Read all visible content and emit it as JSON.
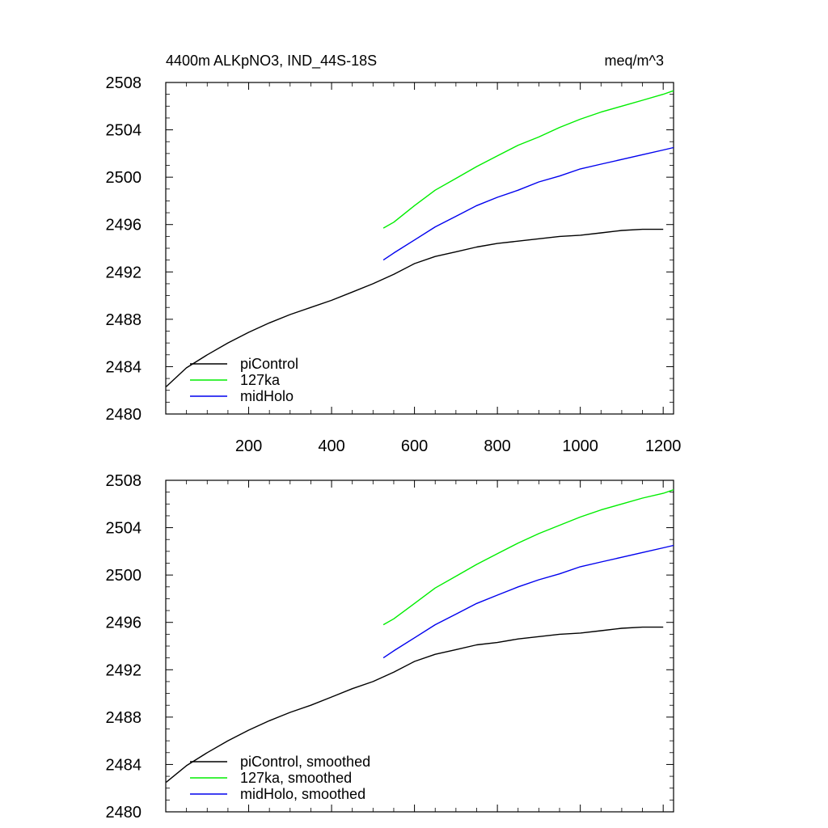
{
  "title_left": "4400m ALKpNO3, IND_44S-18S",
  "title_right": "meq/m^3",
  "chart_data": [
    {
      "type": "line",
      "panel": "top",
      "xlim": [
        0,
        1225
      ],
      "ylim": [
        2480,
        2508
      ],
      "yticks": [
        2480,
        2484,
        2488,
        2492,
        2496,
        2500,
        2504,
        2508
      ],
      "xticks": [
        200,
        400,
        600,
        800,
        1000,
        1200
      ],
      "show_xtick_labels": true,
      "legend_position": "bottom-left",
      "series": [
        {
          "name": "piControl",
          "color": "#000000",
          "x": [
            1,
            50,
            100,
            150,
            200,
            250,
            300,
            350,
            400,
            450,
            500,
            550,
            600,
            650,
            700,
            750,
            800,
            850,
            900,
            950,
            1000,
            1050,
            1100,
            1150,
            1200
          ],
          "y": [
            2482.3,
            2483.9,
            2485.0,
            2486.0,
            2486.9,
            2487.7,
            2488.4,
            2489.0,
            2489.6,
            2490.3,
            2491.0,
            2491.8,
            2492.7,
            2493.3,
            2493.7,
            2494.1,
            2494.4,
            2494.6,
            2494.8,
            2495.0,
            2495.1,
            2495.3,
            2495.5,
            2495.6,
            2495.6
          ]
        },
        {
          "name": "127ka",
          "color": "#00ee00",
          "x": [
            525,
            550,
            600,
            650,
            700,
            750,
            800,
            850,
            900,
            950,
            1000,
            1050,
            1100,
            1150,
            1200,
            1225
          ],
          "y": [
            2495.7,
            2496.2,
            2497.6,
            2498.9,
            2499.9,
            2500.9,
            2501.8,
            2502.7,
            2503.4,
            2504.2,
            2504.9,
            2505.5,
            2506.0,
            2506.5,
            2507.0,
            2507.3
          ]
        },
        {
          "name": "midHolo",
          "color": "#0000ee",
          "x": [
            525,
            550,
            600,
            650,
            700,
            750,
            800,
            850,
            900,
            950,
            1000,
            1050,
            1100,
            1150,
            1200,
            1225
          ],
          "y": [
            2493.0,
            2493.6,
            2494.7,
            2495.8,
            2496.7,
            2497.6,
            2498.3,
            2498.9,
            2499.6,
            2500.1,
            2500.7,
            2501.1,
            2501.5,
            2501.9,
            2502.3,
            2502.5
          ]
        }
      ]
    },
    {
      "type": "line",
      "panel": "bottom",
      "xlim": [
        0,
        1225
      ],
      "ylim": [
        2480,
        2508
      ],
      "yticks": [
        2480,
        2484,
        2488,
        2492,
        2496,
        2500,
        2504,
        2508
      ],
      "xticks": [
        200,
        400,
        600,
        800,
        1000,
        1200
      ],
      "show_xtick_labels": false,
      "legend_position": "bottom-left",
      "series": [
        {
          "name": "piControl, smoothed",
          "color": "#000000",
          "x": [
            1,
            50,
            100,
            150,
            200,
            250,
            300,
            350,
            400,
            450,
            500,
            550,
            600,
            650,
            700,
            750,
            800,
            850,
            900,
            950,
            1000,
            1050,
            1100,
            1150,
            1200
          ],
          "y": [
            2482.5,
            2483.9,
            2485.0,
            2486.0,
            2486.9,
            2487.7,
            2488.4,
            2489.0,
            2489.7,
            2490.4,
            2491.0,
            2491.8,
            2492.7,
            2493.3,
            2493.7,
            2494.1,
            2494.3,
            2494.6,
            2494.8,
            2495.0,
            2495.1,
            2495.3,
            2495.5,
            2495.6,
            2495.6
          ]
        },
        {
          "name": "127ka, smoothed",
          "color": "#00ee00",
          "x": [
            525,
            550,
            600,
            650,
            700,
            750,
            800,
            850,
            900,
            950,
            1000,
            1050,
            1100,
            1150,
            1200,
            1225
          ],
          "y": [
            2495.8,
            2496.3,
            2497.6,
            2498.9,
            2499.9,
            2500.9,
            2501.8,
            2502.7,
            2503.5,
            2504.2,
            2504.9,
            2505.5,
            2506.0,
            2506.5,
            2506.9,
            2507.2
          ]
        },
        {
          "name": "midHolo, smoothed",
          "color": "#0000ee",
          "x": [
            525,
            550,
            600,
            650,
            700,
            750,
            800,
            850,
            900,
            950,
            1000,
            1050,
            1100,
            1150,
            1200,
            1225
          ],
          "y": [
            2493.0,
            2493.6,
            2494.7,
            2495.8,
            2496.7,
            2497.6,
            2498.3,
            2499.0,
            2499.6,
            2500.1,
            2500.7,
            2501.1,
            2501.5,
            2501.9,
            2502.3,
            2502.5
          ]
        }
      ]
    }
  ]
}
